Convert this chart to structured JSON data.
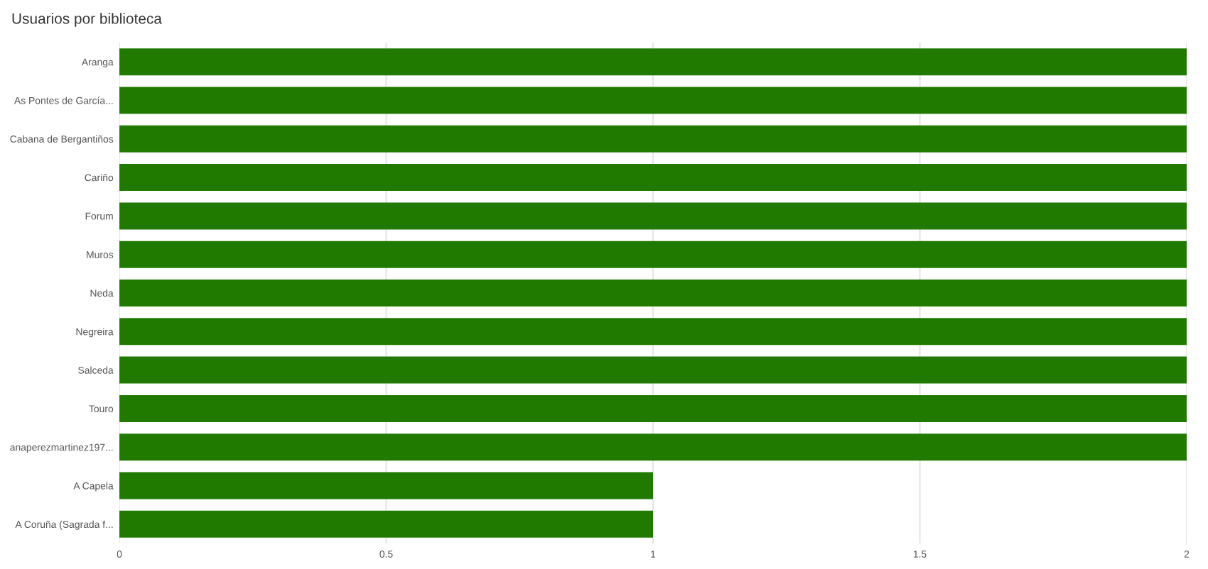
{
  "chart_data": {
    "type": "bar",
    "orientation": "horizontal",
    "title": "Usuarios por biblioteca",
    "categories": [
      "Aranga",
      "As Pontes de García...",
      "Cabana de Bergantiños",
      "Cariño",
      "Forum",
      "Muros",
      "Neda",
      "Negreira",
      "Salceda",
      "Touro",
      "anaperezmartinez197...",
      "A Capela",
      "A Coruña (Sagrada f..."
    ],
    "values": [
      2,
      2,
      2,
      2,
      2,
      2,
      2,
      2,
      2,
      2,
      2,
      1,
      1
    ],
    "color": "#217a00",
    "xlim": [
      0,
      2
    ],
    "xticks": [
      0,
      0.5,
      1,
      1.5,
      2
    ],
    "grid": "x"
  }
}
